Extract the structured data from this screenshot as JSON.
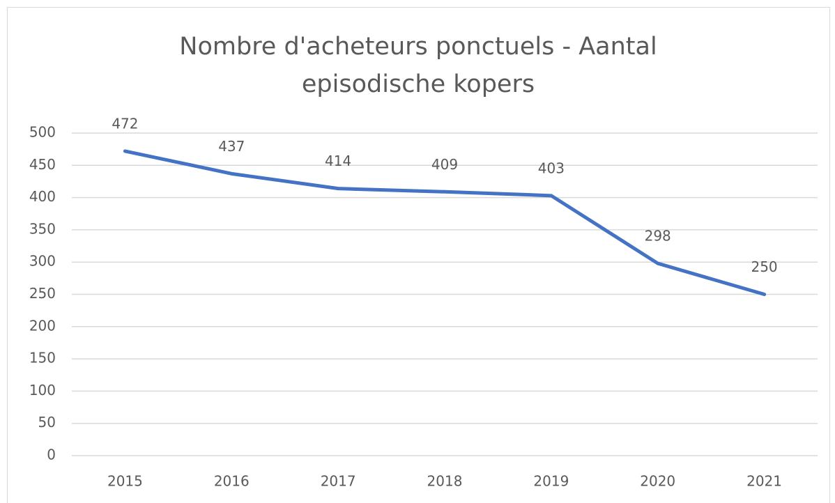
{
  "chart_data": {
    "type": "line",
    "title": "Nombre d'acheteurs ponctuels - Aantal episodische kopers",
    "categories": [
      "2015",
      "2016",
      "2017",
      "2018",
      "2019",
      "2020",
      "2021"
    ],
    "series": [
      {
        "name": "Nombre d'acheteurs ponctuels",
        "color": "#4472c4",
        "values": [
          472,
          437,
          414,
          409,
          403,
          298,
          250
        ]
      }
    ],
    "ylim": [
      0,
      500
    ],
    "yticks": [
      0,
      50,
      100,
      150,
      200,
      250,
      300,
      350,
      400,
      450,
      500
    ],
    "grid": true
  }
}
